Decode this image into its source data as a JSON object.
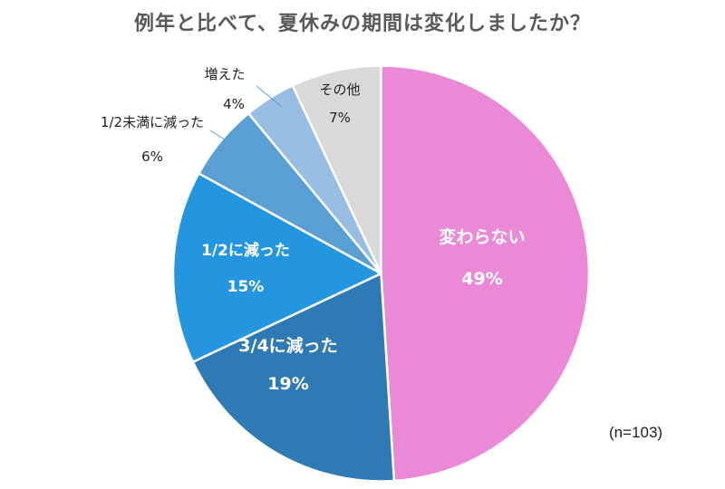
{
  "title": "例年と比べて、夏休みの期間は変化しましたか？",
  "note": "(n=103)",
  "chart_data": {
    "type": "pie",
    "title": "例年と比べて、夏休みの期間は変化しましたか？",
    "categories": [
      "変わらない",
      "3/4に減った",
      "1/2に減った",
      "1/2未満に減った",
      "増えた",
      "その他"
    ],
    "values": [
      49,
      19,
      15,
      6,
      4,
      7
    ],
    "unit": "%",
    "colors": [
      "#EA8AD6",
      "#2E7AB4",
      "#2396DF",
      "#5A9FD3",
      "#97BDE2",
      "#D9D9D9"
    ],
    "start_angle": "12 o'clock, clockwise",
    "sample_size": "n=103",
    "labels": [
      {
        "name": "変わらない",
        "pct": "49%",
        "inside": true,
        "color": "#ffffff"
      },
      {
        "name": "3/4に減った",
        "pct": "19%",
        "inside": true,
        "color": "#ffffff"
      },
      {
        "name": "1/2に減った",
        "pct": "15%",
        "inside": true,
        "color": "#ffffff"
      },
      {
        "name": "1/2未満に減った",
        "pct": "6%",
        "inside": false,
        "color": "#222222"
      },
      {
        "name": "増えた",
        "pct": "4%",
        "inside": false,
        "color": "#222222"
      },
      {
        "name": "その他",
        "pct": "7%",
        "inside": true,
        "color": "#222222"
      }
    ]
  }
}
